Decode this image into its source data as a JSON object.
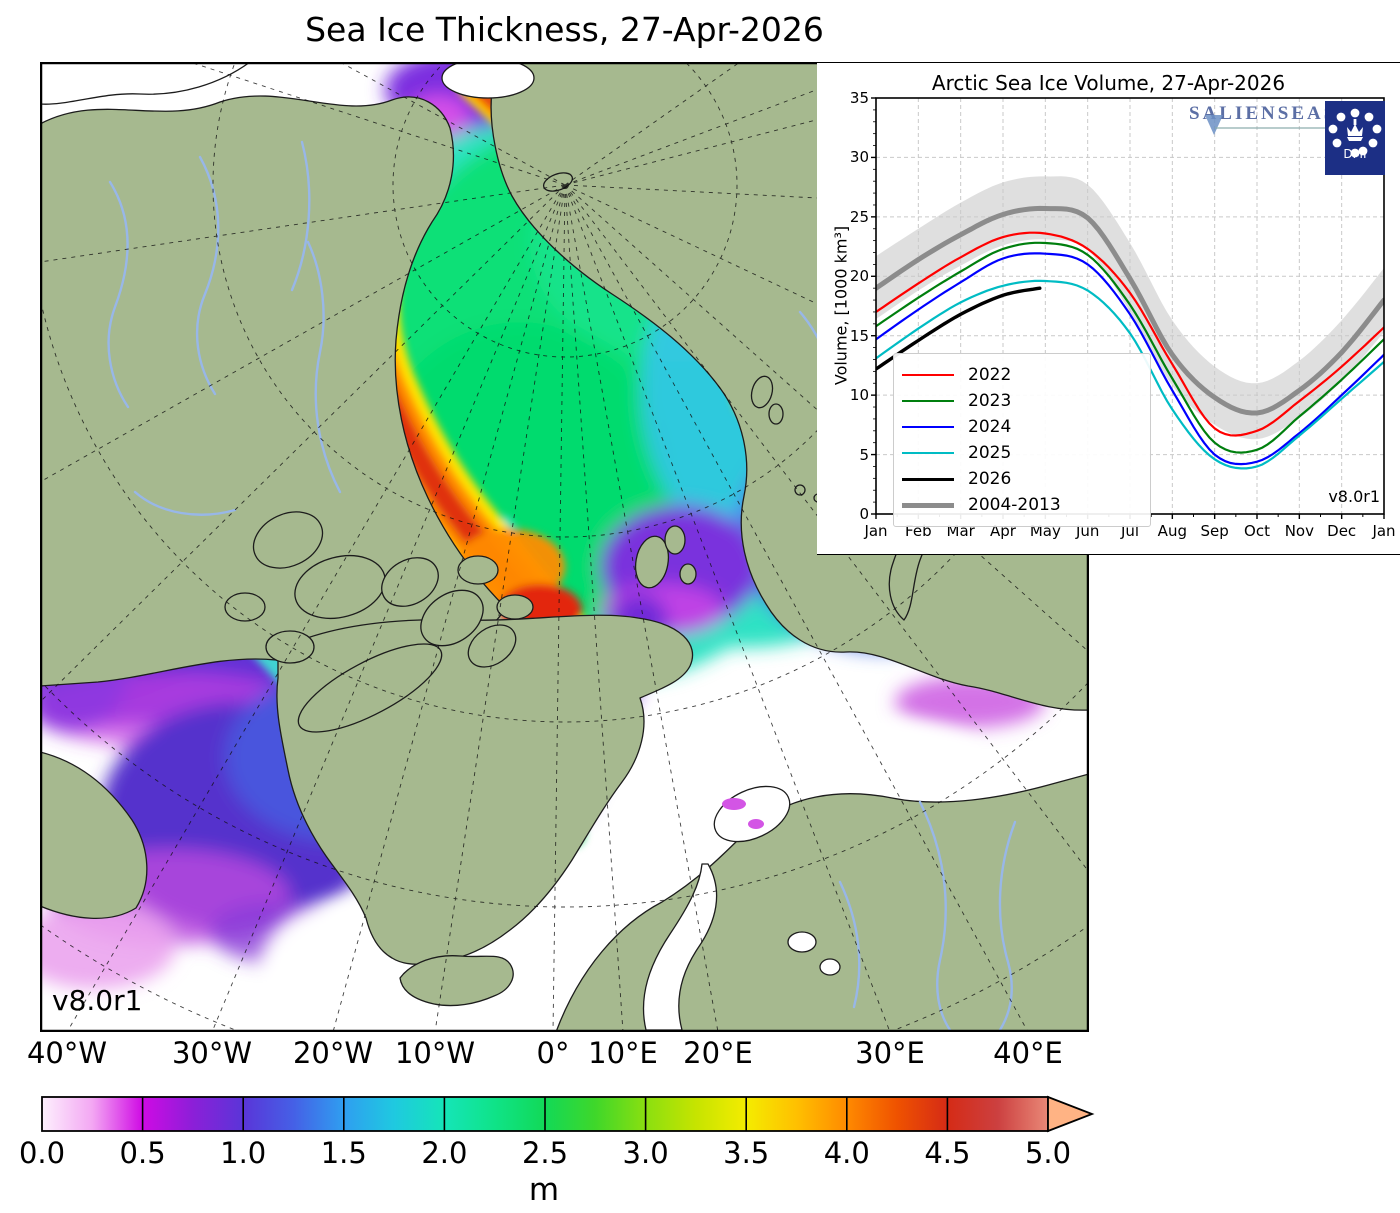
{
  "title": "Sea Ice Thickness, 27-Apr-2026",
  "map": {
    "version_label": "v8.0r1",
    "x_tick_labels": [
      "40°W",
      "30°W",
      "20°W",
      "10°W",
      "0°",
      "10°E",
      "20°E",
      "30°E",
      "40°E"
    ],
    "land_color": "#a6b98f",
    "river_color": "#98b7e8",
    "ocean_color": "#ffffff"
  },
  "colorbar": {
    "label": "m",
    "tick_labels": [
      "0.0",
      "0.5",
      "1.0",
      "1.5",
      "2.0",
      "2.5",
      "3.0",
      "3.5",
      "4.0",
      "4.5",
      "5.0"
    ],
    "stops": [
      {
        "v": 0.0,
        "c": "#fdf0fd"
      },
      {
        "v": 0.25,
        "c": "#f3a7f3"
      },
      {
        "v": 0.5,
        "c": "#cf0ae4"
      },
      {
        "v": 0.75,
        "c": "#8c1fd8"
      },
      {
        "v": 1.0,
        "c": "#5a35d8"
      },
      {
        "v": 1.25,
        "c": "#4560e6"
      },
      {
        "v": 1.5,
        "c": "#2f9ef0"
      },
      {
        "v": 1.75,
        "c": "#1fc9e0"
      },
      {
        "v": 2.0,
        "c": "#15e5b8"
      },
      {
        "v": 2.25,
        "c": "#0fe388"
      },
      {
        "v": 2.5,
        "c": "#12d957"
      },
      {
        "v": 2.75,
        "c": "#3fd72a"
      },
      {
        "v": 3.0,
        "c": "#8adf10"
      },
      {
        "v": 3.25,
        "c": "#c6e400"
      },
      {
        "v": 3.5,
        "c": "#f4ec00"
      },
      {
        "v": 3.75,
        "c": "#ffc000"
      },
      {
        "v": 4.0,
        "c": "#ff8a00"
      },
      {
        "v": 4.25,
        "c": "#ef5200"
      },
      {
        "v": 4.5,
        "c": "#d52b16"
      },
      {
        "v": 4.75,
        "c": "#cc4040"
      },
      {
        "v": 5.0,
        "c": "#e98877"
      }
    ],
    "arrow_color": "#ffb384"
  },
  "chart_data": {
    "type": "line",
    "title": "Arctic Sea Ice Volume, 27-Apr-2026",
    "ylabel": "Volume, [1000 km³]",
    "version_label": "v8.0r1",
    "x_tick_labels": [
      "Jan",
      "Feb",
      "Mar",
      "Apr",
      "May",
      "Jun",
      "Jul",
      "Aug",
      "Sep",
      "Oct",
      "Nov",
      "Dec",
      "Jan"
    ],
    "ylim": [
      0,
      35
    ],
    "y_ticks": [
      0,
      5,
      10,
      15,
      20,
      25,
      30,
      35
    ],
    "grid": true,
    "legend_position": "lower-left",
    "band": {
      "name": "2004-2013 range",
      "color": "#c9c9c9",
      "upper": [
        21.7,
        24.0,
        26.2,
        27.9,
        28.4,
        27.7,
        22.8,
        16.3,
        12.4,
        11.0,
        12.9,
        16.3,
        20.7
      ],
      "lower": [
        16.4,
        18.8,
        20.9,
        22.6,
        23.1,
        22.2,
        17.0,
        10.8,
        7.5,
        6.3,
        8.1,
        11.2,
        15.3
      ]
    },
    "series": [
      {
        "name": "2022",
        "color": "#ff0000",
        "width": 2.2,
        "values": [
          17.0,
          19.4,
          21.6,
          23.3,
          23.6,
          22.3,
          18.6,
          12.6,
          7.2,
          7.0,
          9.5,
          12.4,
          15.7
        ]
      },
      {
        "name": "2023",
        "color": "#007f0e",
        "width": 2.2,
        "values": [
          15.8,
          18.2,
          20.4,
          22.3,
          22.8,
          21.8,
          17.6,
          11.4,
          6.0,
          5.4,
          8.2,
          11.3,
          14.7
        ]
      },
      {
        "name": "2024",
        "color": "#0000ff",
        "width": 2.2,
        "values": [
          14.7,
          17.2,
          19.5,
          21.5,
          21.9,
          21.0,
          16.8,
          10.4,
          5.0,
          4.4,
          6.8,
          10.0,
          13.4
        ]
      },
      {
        "name": "2025",
        "color": "#00bcc4",
        "width": 2.2,
        "values": [
          13.1,
          15.6,
          17.8,
          19.2,
          19.6,
          18.8,
          15.2,
          8.8,
          4.6,
          4.0,
          6.6,
          9.7,
          12.8
        ]
      },
      {
        "name": "2026",
        "color": "#000000",
        "width": 3.4,
        "x": [
          0,
          1,
          2,
          3,
          3.87
        ],
        "values": [
          12.2,
          14.6,
          16.8,
          18.4,
          19.0
        ]
      },
      {
        "name": "2004-2013",
        "color": "#8c8c8c",
        "width": 5.0,
        "values": [
          19.0,
          21.4,
          23.5,
          25.2,
          25.7,
          24.9,
          19.8,
          13.4,
          9.8,
          8.5,
          10.4,
          13.6,
          18.0
        ]
      }
    ]
  },
  "logos": {
    "salienseas": "SALIENSEAS",
    "dmi": "DMI"
  }
}
